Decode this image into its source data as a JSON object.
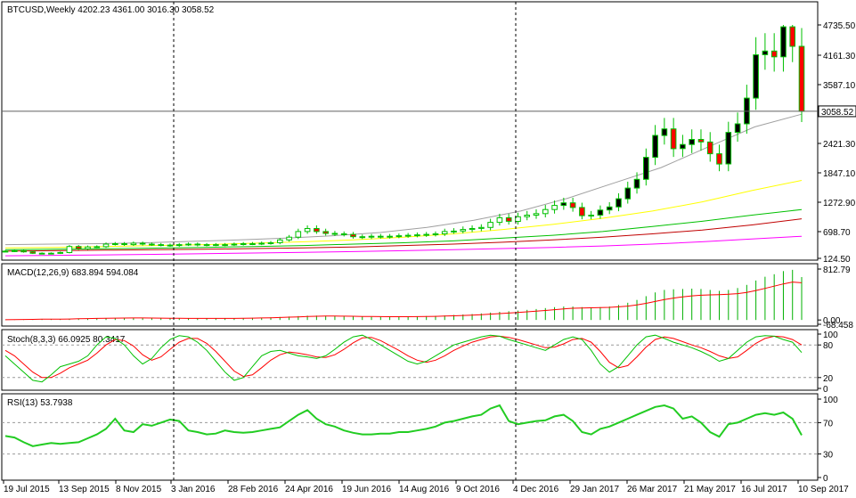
{
  "colors": {
    "background": "#ffffff",
    "grid": "#000000",
    "candle_up": "#000000",
    "candle_down": "#ff0000",
    "candle_wick": "#00c000",
    "ma_gray": "#a0a0a0",
    "ma_yellow": "#ffff00",
    "ma_green": "#00c000",
    "ma_red": "#c00000",
    "ma_magenta": "#ff00ff",
    "macd_hist": "#00b000",
    "macd_signal": "#ff0000",
    "stoch_k": "#00c000",
    "stoch_d": "#ff0000",
    "rsi_line": "#22cc22"
  },
  "chart_data": {
    "type": "candlestick",
    "title": "BTCUSD,Weekly  4202.23 4361.00 3016.30 3058.52",
    "symbol": "BTCUSD",
    "timeframe": "Weekly",
    "ohlc_last": {
      "open": 4202.23,
      "high": 4361.0,
      "low": 3016.3,
      "close": 3058.52
    },
    "current_price_label": "3058.52",
    "price_ticks": [
      "4735.50",
      "4161.30",
      "3587.10",
      "2421.30",
      "1847.10",
      "1272.90",
      "698.70",
      "124.50"
    ],
    "x_ticks": [
      "19 Jul 2015",
      "13 Sep 2015",
      "8 Nov 2015",
      "3 Jan 2016",
      "28 Feb 2016",
      "24 Apr 2016",
      "19 Jun 2016",
      "14 Aug 2016",
      "9 Oct 2016",
      "4 Dec 2016",
      "29 Jan 2017",
      "26 Mar 2017",
      "21 May 2017",
      "16 Jul 2017",
      "10 Sep 2017"
    ],
    "separators": [
      "3 Jan 2016",
      "4 Dec 2016"
    ],
    "close_series": [
      280,
      290,
      265,
      235,
      230,
      235,
      250,
      380,
      330,
      370,
      375,
      430,
      440,
      420,
      450,
      430,
      420,
      410,
      400,
      420,
      430,
      410,
      420,
      415,
      420,
      430,
      440,
      440,
      450,
      460,
      520,
      580,
      700,
      760,
      700,
      660,
      650,
      640,
      590,
      580,
      600,
      590,
      600,
      610,
      620,
      630,
      640,
      650,
      700,
      710,
      740,
      760,
      780,
      880,
      970,
      900,
      990,
      1020,
      1050,
      1130,
      1210,
      1260,
      1170,
      1010,
      1020,
      1120,
      1180,
      1340,
      1550,
      1720,
      2150,
      2580,
      2710,
      2320,
      2400,
      2500,
      2450,
      2220,
      2020,
      2640,
      2810,
      3320,
      4170,
      4240,
      4130,
      4700,
      4330,
      3058.52
    ],
    "moving_averages": [
      {
        "color": "ma_gray",
        "values": [
          420,
          430,
          440,
          460,
          490,
          520,
          560,
          610,
          680,
          780,
          920,
          1100,
          1350,
          1650,
          1950,
          2350,
          2750,
          3000
        ]
      },
      {
        "color": "ma_yellow",
        "values": [
          350,
          360,
          380,
          400,
          420,
          450,
          480,
          520,
          580,
          650,
          740,
          840,
          960,
          1100,
          1280,
          1500,
          1700
        ]
      },
      {
        "color": "ma_green",
        "values": [
          310,
          320,
          330,
          345,
          360,
          380,
          400,
          430,
          460,
          500,
          560,
          620,
          700,
          800,
          900,
          1020,
          1130
        ]
      },
      {
        "color": "ma_red",
        "values": [
          280,
          290,
          300,
          310,
          320,
          335,
          350,
          370,
          400,
          430,
          470,
          520,
          580,
          650,
          730,
          830,
          950
        ]
      },
      {
        "color": "ma_magenta",
        "values": [
          180,
          190,
          200,
          210,
          225,
          240,
          255,
          270,
          290,
          310,
          335,
          360,
          390,
          430,
          480,
          540,
          600
        ]
      }
    ],
    "macd": {
      "label": "MACD(12,26,9) 683.894 594.084",
      "ticks": [
        "812.79",
        "0.00",
        "-68.458"
      ],
      "ylim": [
        -68.458,
        812.79
      ],
      "hist": [
        5,
        8,
        10,
        12,
        14,
        15,
        15,
        18,
        22,
        25,
        28,
        30,
        32,
        33,
        33,
        32,
        30,
        28,
        26,
        25,
        24,
        24,
        24,
        25,
        26,
        28,
        30,
        34,
        38,
        42,
        48,
        55,
        62,
        68,
        70,
        68,
        64,
        60,
        55,
        52,
        50,
        50,
        50,
        52,
        55,
        58,
        62,
        66,
        72,
        80,
        88,
        95,
        105,
        118,
        130,
        140,
        150,
        162,
        175,
        190,
        205,
        215,
        215,
        205,
        200,
        205,
        215,
        240,
        275,
        320,
        380,
        440,
        480,
        490,
        495,
        500,
        495,
        480,
        465,
        480,
        510,
        560,
        630,
        690,
        730,
        780,
        800,
        684
      ],
      "signal": [
        4,
        6,
        8,
        10,
        12,
        13,
        14,
        16,
        19,
        22,
        25,
        27,
        29,
        31,
        32,
        32,
        31,
        29,
        28,
        27,
        26,
        25,
        25,
        25,
        25,
        26,
        28,
        30,
        33,
        36,
        40,
        45,
        50,
        55,
        60,
        62,
        62,
        61,
        59,
        57,
        55,
        54,
        53,
        53,
        53,
        54,
        56,
        58,
        62,
        67,
        72,
        78,
        85,
        93,
        102,
        111,
        120,
        130,
        140,
        152,
        165,
        177,
        187,
        192,
        195,
        198,
        202,
        210,
        222,
        240,
        265,
        295,
        325,
        350,
        370,
        385,
        395,
        400,
        405,
        410,
        420,
        440,
        470,
        505,
        540,
        575,
        605,
        594
      ]
    },
    "stochastic": {
      "label": "Stoch(8,3,3) 66.0925 80.3417",
      "ticks": [
        "100",
        "80",
        "20",
        "0"
      ],
      "ylim": [
        0,
        100
      ],
      "k": [
        60,
        45,
        30,
        15,
        12,
        25,
        40,
        45,
        50,
        60,
        80,
        95,
        92,
        80,
        60,
        45,
        55,
        75,
        90,
        97,
        95,
        85,
        70,
        50,
        30,
        15,
        20,
        40,
        60,
        68,
        70,
        65,
        60,
        58,
        55,
        60,
        72,
        85,
        95,
        98,
        90,
        80,
        70,
        60,
        50,
        45,
        50,
        60,
        70,
        80,
        85,
        90,
        95,
        98,
        96,
        90,
        85,
        80,
        75,
        70,
        80,
        90,
        95,
        90,
        70,
        45,
        30,
        40,
        60,
        80,
        95,
        98,
        92,
        85,
        80,
        75,
        68,
        60,
        50,
        55,
        70,
        85,
        95,
        97,
        96,
        90,
        85,
        66
      ],
      "d": [
        70,
        60,
        45,
        30,
        20,
        20,
        28,
        38,
        45,
        52,
        65,
        80,
        90,
        88,
        78,
        62,
        52,
        58,
        72,
        85,
        92,
        92,
        83,
        68,
        50,
        32,
        22,
        25,
        38,
        52,
        62,
        67,
        65,
        62,
        58,
        57,
        62,
        72,
        84,
        93,
        94,
        88,
        79,
        70,
        60,
        52,
        48,
        52,
        60,
        70,
        78,
        85,
        90,
        95,
        96,
        94,
        90,
        85,
        80,
        75,
        76,
        82,
        90,
        92,
        85,
        68,
        48,
        38,
        42,
        58,
        76,
        90,
        95,
        92,
        86,
        80,
        75,
        68,
        60,
        55,
        58,
        70,
        83,
        92,
        96,
        95,
        90,
        80
      ]
    },
    "rsi": {
      "label": "RSI(13) 53.7938",
      "ticks": [
        "100",
        "70",
        "30",
        "0"
      ],
      "ylim": [
        0,
        100
      ],
      "values": [
        53,
        51,
        45,
        40,
        42,
        44,
        43,
        44,
        45,
        50,
        55,
        62,
        75,
        60,
        58,
        68,
        66,
        70,
        74,
        72,
        60,
        58,
        55,
        56,
        60,
        58,
        57,
        58,
        60,
        62,
        64,
        72,
        80,
        86,
        75,
        68,
        65,
        60,
        57,
        55,
        55,
        56,
        56,
        58,
        58,
        60,
        62,
        65,
        70,
        72,
        75,
        78,
        80,
        88,
        92,
        72,
        68,
        70,
        72,
        73,
        78,
        80,
        72,
        58,
        55,
        62,
        65,
        70,
        75,
        80,
        85,
        90,
        92,
        88,
        75,
        78,
        70,
        58,
        52,
        68,
        70,
        75,
        80,
        82,
        80,
        83,
        75,
        54
      ]
    }
  }
}
